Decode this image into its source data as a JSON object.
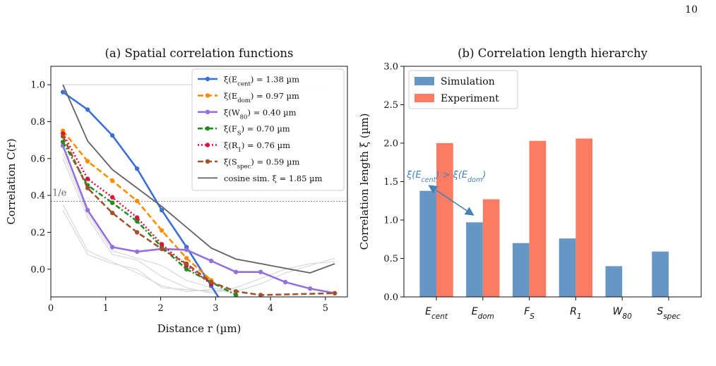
{
  "page_number": "10",
  "chart_data": [
    {
      "type": "line",
      "title": "(a) Spatial correlation functions",
      "xlabel": "Distance r (µm)",
      "ylabel": "Correlation C(r)",
      "xlim": [
        0,
        5.4
      ],
      "ylim": [
        -0.15,
        1.1
      ],
      "xticks": [
        0,
        1,
        2,
        3,
        4,
        5
      ],
      "yticks": [
        0.0,
        0.2,
        0.4,
        0.6,
        0.8,
        1.0
      ],
      "reference_line": {
        "y": 0.368,
        "label": "1/e"
      },
      "legend_position": "top-right",
      "series": [
        {
          "name": "ξ(E_cent) = 1.38 µm",
          "color": "#3b6fd6",
          "style": "solid",
          "x": [
            0.22,
            0.67,
            1.12,
            1.57,
            2.02,
            2.47,
            2.92,
            3.37
          ],
          "y": [
            0.96,
            0.865,
            0.725,
            0.545,
            0.32,
            0.12,
            -0.09,
            -0.3
          ]
        },
        {
          "name": "ξ(E_dom) = 0.97 µm",
          "color": "#ff8c00",
          "style": "dashed",
          "x": [
            0.22,
            0.67,
            1.12,
            1.57,
            2.02,
            2.47,
            2.92
          ],
          "y": [
            0.75,
            0.585,
            0.48,
            0.37,
            0.21,
            0.06,
            -0.06
          ]
        },
        {
          "name": "ξ(W_80) = 0.40 µm",
          "color": "#9370db",
          "style": "solid",
          "x": [
            0.22,
            0.67,
            1.12,
            1.57,
            2.02,
            2.47,
            2.92,
            3.37,
            3.82,
            4.27,
            4.72,
            5.17
          ],
          "y": [
            0.67,
            0.32,
            0.12,
            0.095,
            0.11,
            0.105,
            0.045,
            -0.015,
            -0.015,
            -0.07,
            -0.105,
            -0.13
          ]
        },
        {
          "name": "ξ(F_S) = 0.70 µm",
          "color": "#228b22",
          "style": "dashdot",
          "x": [
            0.22,
            0.67,
            1.12,
            1.57,
            2.02,
            2.47,
            2.92,
            3.37
          ],
          "y": [
            0.69,
            0.455,
            0.36,
            0.26,
            0.12,
            0.0,
            -0.07,
            -0.14
          ]
        },
        {
          "name": "ξ(R_1) = 0.76 µm",
          "color": "#dc143c",
          "style": "dotted",
          "x": [
            0.22,
            0.67,
            1.12,
            1.57,
            2.02,
            2.47,
            2.92
          ],
          "y": [
            0.735,
            0.49,
            0.39,
            0.28,
            0.135,
            0.02,
            -0.08
          ]
        },
        {
          "name": "ξ(S_spec) = 0.59 µm",
          "color": "#a0522d",
          "style": "dashed",
          "x": [
            0.22,
            0.67,
            1.12,
            1.57,
            2.02,
            2.47,
            2.92,
            3.37,
            3.82,
            5.17
          ],
          "y": [
            0.72,
            0.44,
            0.305,
            0.2,
            0.11,
            0.03,
            -0.07,
            -0.12,
            -0.14,
            -0.13
          ]
        },
        {
          "name": "cosine sim. ξ = 1.85 µm",
          "color": "#606060",
          "style": "solid",
          "markers": false,
          "x": [
            0.22,
            0.67,
            1.12,
            1.57,
            2.02,
            2.92,
            3.37,
            3.82,
            4.27,
            4.72,
            5.17
          ],
          "y": [
            1.0,
            0.695,
            0.54,
            0.44,
            0.34,
            0.115,
            0.055,
            0.03,
            0.005,
            -0.02,
            0.03
          ]
        }
      ],
      "background_lines": [
        {
          "x": [
            0.22,
            0.67,
            1.12,
            1.57,
            2.02,
            2.47,
            2.92,
            3.37,
            4.27,
            5.17
          ],
          "y": [
            1.0,
            1.0,
            1.0,
            1.0,
            1.0,
            1.0,
            1.0,
            1.0,
            1.0,
            1.0
          ]
        },
        {
          "x": [
            0.22,
            0.67,
            1.12,
            1.57,
            2.02,
            2.47,
            2.92,
            3.37
          ],
          "y": [
            0.35,
            0.1,
            0.04,
            -0.02,
            -0.09,
            -0.12,
            -0.11,
            -0.13
          ]
        },
        {
          "x": [
            0.22,
            0.67,
            1.12,
            1.57,
            2.02,
            2.47,
            2.92,
            3.37
          ],
          "y": [
            0.32,
            0.08,
            0.03,
            0.0,
            -0.1,
            -0.11,
            -0.12,
            -0.1
          ]
        },
        {
          "x": [
            0.22,
            0.67,
            1.12,
            1.57,
            2.02,
            2.47,
            2.92,
            3.37,
            3.82,
            4.27,
            4.72,
            5.17
          ],
          "y": [
            0.63,
            0.3,
            0.1,
            0.06,
            0.02,
            -0.06,
            -0.1,
            -0.12,
            -0.08,
            -0.02,
            0.02,
            0.06
          ]
        },
        {
          "x": [
            0.22,
            0.67,
            1.12,
            1.57,
            2.02,
            2.47,
            2.92,
            3.37,
            3.82,
            4.27,
            4.72,
            5.17
          ],
          "y": [
            0.6,
            0.28,
            0.08,
            0.05,
            -0.04,
            -0.1,
            -0.13,
            -0.1,
            -0.05,
            0.0,
            0.03,
            0.04
          ]
        }
      ]
    },
    {
      "type": "bar",
      "title": "(b) Correlation length hierarchy",
      "xlabel": "",
      "ylabel": "Correlation length ξ (µm)",
      "ylim": [
        0,
        3.0
      ],
      "yticks": [
        0.0,
        0.5,
        1.0,
        1.5,
        2.0,
        2.5,
        3.0
      ],
      "categories": [
        "E_cent",
        "E_dom",
        "F_S",
        "R_1",
        "W_80",
        "S_spec"
      ],
      "legend_position": "top-left",
      "series": [
        {
          "name": "Simulation",
          "color": "#6596c4",
          "values": [
            1.38,
            0.97,
            0.7,
            0.76,
            0.4,
            0.59
          ]
        },
        {
          "name": "Experiment",
          "color": "#fb7b63",
          "values": [
            2.0,
            1.27,
            2.03,
            2.06,
            null,
            null
          ]
        }
      ],
      "annotation": {
        "text": "ξ(E_cent) > ξ(E_dom)",
        "color": "#4682b4"
      }
    }
  ]
}
